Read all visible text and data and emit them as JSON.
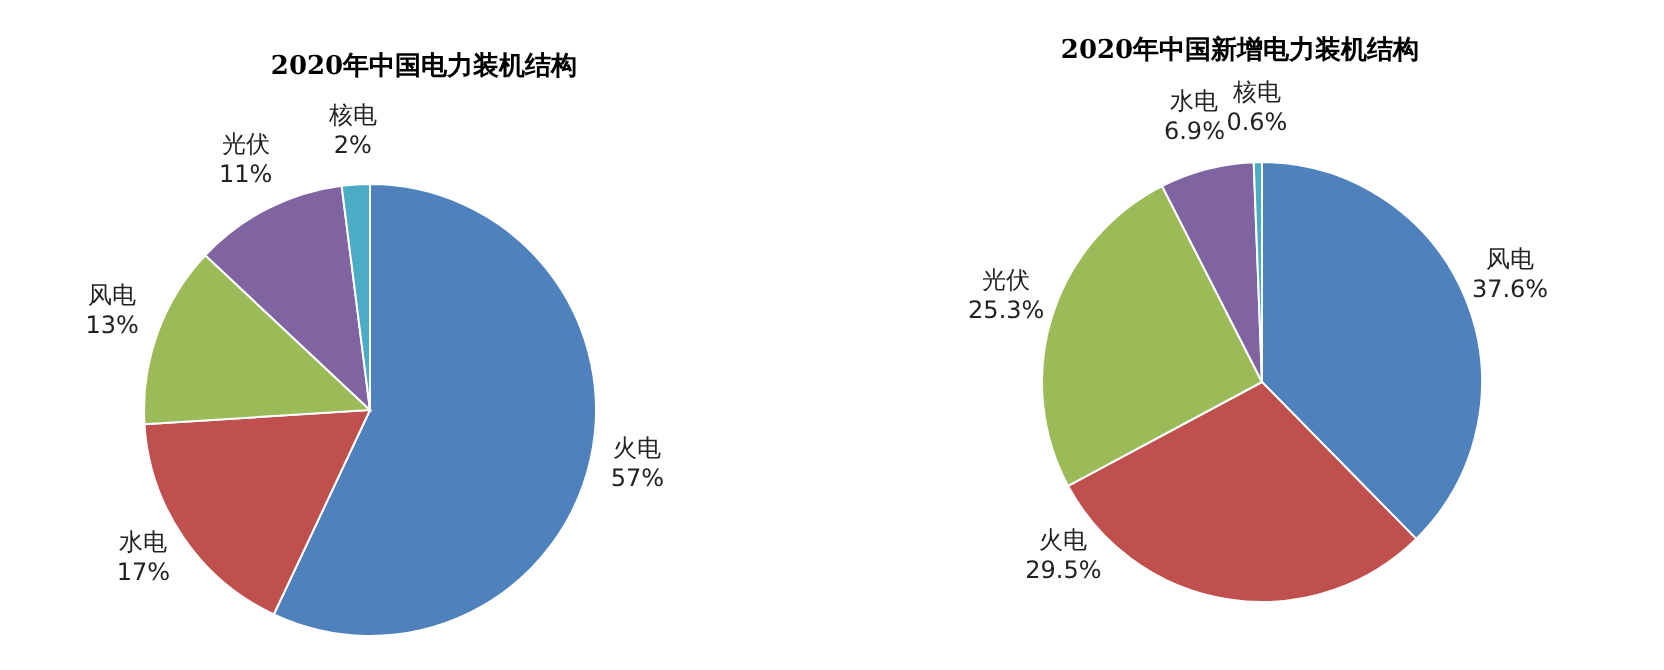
{
  "chart_data": [
    {
      "type": "pie",
      "title": "2020年中国电力装机结构",
      "categories": [
        "火电",
        "水电",
        "风电",
        "光伏",
        "核电"
      ],
      "values": [
        57,
        17,
        13,
        11,
        2
      ],
      "value_labels": [
        "57%",
        "17%",
        "13%",
        "11%",
        "2%"
      ],
      "colors": [
        "#4f81bd",
        "#c0504d",
        "#9bbb59",
        "#8064a2",
        "#4bacc6"
      ]
    },
    {
      "type": "pie",
      "title": "2020年中国新增电力装机结构",
      "categories": [
        "风电",
        "火电",
        "光伏",
        "水电",
        "核电"
      ],
      "values": [
        37.6,
        29.5,
        25.3,
        6.9,
        0.6
      ],
      "value_labels": [
        "37.6%",
        "29.5%",
        "25.3%",
        "6.9%",
        "0.6%"
      ],
      "colors": [
        "#4f81bd",
        "#c0504d",
        "#9bbb59",
        "#8064a2",
        "#4bacc6"
      ]
    }
  ]
}
